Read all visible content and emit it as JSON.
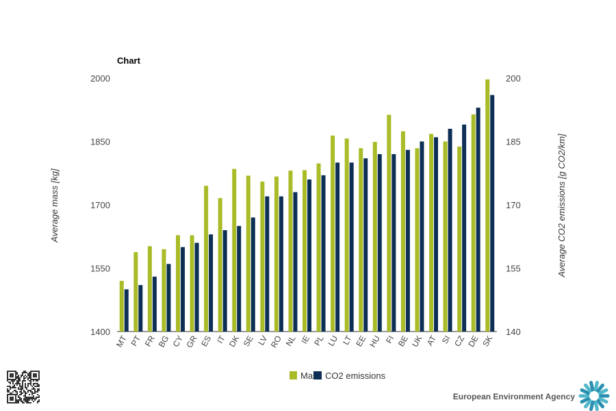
{
  "chart_data": {
    "type": "bar",
    "title": "Chart",
    "categories": [
      "MT",
      "PT",
      "FR",
      "BG",
      "CY",
      "GR",
      "ES",
      "IT",
      "DK",
      "SE",
      "LV",
      "RO",
      "NL",
      "IE",
      "PL",
      "LU",
      "LT",
      "EE",
      "HU",
      "FI",
      "BE",
      "UK",
      "AT",
      "SI",
      "CZ",
      "DE",
      "SK"
    ],
    "series": [
      {
        "name": "Mass",
        "axis": "left",
        "color": "#a9bb27",
        "values": [
          1520,
          1588,
          1602,
          1595,
          1628,
          1628,
          1745,
          1716,
          1785,
          1769,
          1755,
          1767,
          1781,
          1782,
          1798,
          1864,
          1857,
          1834,
          1849,
          1913,
          1874,
          1834,
          1868,
          1850,
          1838,
          1914,
          1997
        ]
      },
      {
        "name": "CO2 emissions",
        "axis": "right",
        "color": "#0d2f55",
        "values": [
          150,
          151,
          153,
          156,
          160,
          161,
          163,
          164,
          165,
          167,
          172,
          172,
          173,
          176,
          177,
          180,
          180,
          181,
          182,
          182,
          183,
          185,
          186,
          188,
          189,
          193,
          196
        ]
      }
    ],
    "ylabel": "Average mass [kg]",
    "ylim": [
      1400,
      2000
    ],
    "yticks": [
      1400,
      1550,
      1700,
      1850,
      2000
    ],
    "y2label": "Average CO2 emissions [g CO2/km]",
    "y2lim": [
      140,
      200
    ],
    "y2ticks": [
      140,
      155,
      170,
      185,
      200
    ],
    "legend_position": "bottom",
    "grid": false
  },
  "legend": {
    "mass_label": "Mass",
    "co2_label": "CO2 emissions"
  },
  "footer": {
    "agency": "European Environment Agency"
  }
}
